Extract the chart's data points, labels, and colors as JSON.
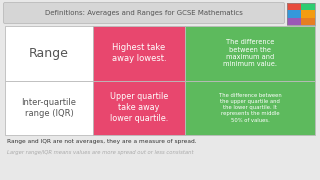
{
  "title": "Definitions: Averages and Ranges for GCSE Mathematics",
  "title_bg": "#d6d6d6",
  "title_color": "#555555",
  "bg_color": "#e8e8e8",
  "table_bg": "#ffffff",
  "row1_label": "Range",
  "row2_label": "Inter-quartile\nrange (IQR)",
  "row1_mid": "Highest take\naway lowest.",
  "row2_mid": "Upper quartile\ntake away\nlower quartile.",
  "row1_right": "The difference\nbetween the\nmaximum and\nminimum value.",
  "row2_right": "The difference between\nthe upper quartile and\nthe lower quartile. It\nrepresents the middle\n50% of values.",
  "pink_color": "#e8476e",
  "green_color": "#5dba5d",
  "label_color": "#555555",
  "mid_text_color": "#ffffff",
  "right_text_color": "#ffffff",
  "note1": "Range and IQR are not averages, they are a measure of spread.",
  "note2": "Larger range/IQR means values are more spread out or less consistant",
  "note1_color": "#333333",
  "note2_color": "#aaaaaa",
  "border_color": "#bbbbbb",
  "img_colors": [
    "#e74c3c",
    "#2ecc71",
    "#3498db",
    "#f39c12"
  ],
  "figw": 3.2,
  "figh": 1.8,
  "dpi": 100
}
